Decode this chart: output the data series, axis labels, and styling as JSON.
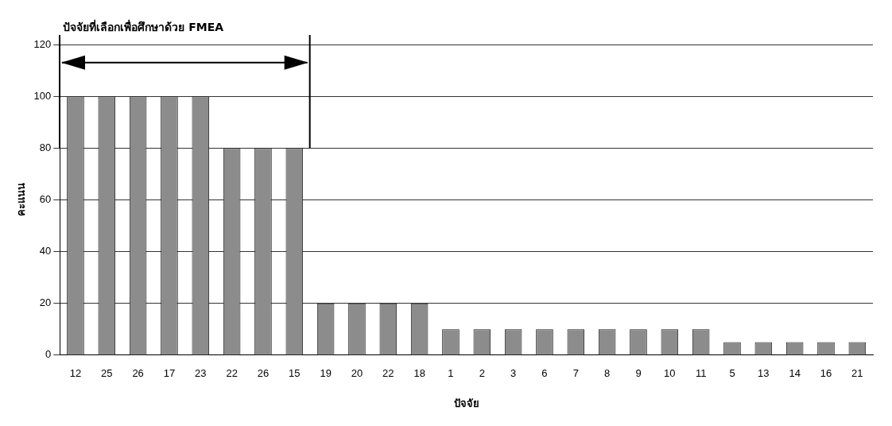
{
  "chart_data": {
    "type": "bar",
    "xlabel": "ปัจจัย",
    "ylabel": "คะแนน",
    "annotations": [
      "ปัจจัยที่เลือกเพื่อศึกษาด้วย FMEA"
    ],
    "categories": [
      "12",
      "25",
      "26",
      "17",
      "23",
      "22",
      "26",
      "15",
      "19",
      "20",
      "22",
      "18",
      "1",
      "2",
      "3",
      "6",
      "7",
      "8",
      "9",
      "10",
      "11",
      "5",
      "13",
      "14",
      "16",
      "21"
    ],
    "values": [
      100,
      100,
      100,
      100,
      100,
      80,
      80,
      80,
      20,
      20,
      20,
      20,
      10,
      10,
      10,
      10,
      10,
      10,
      10,
      10,
      10,
      5,
      5,
      5,
      5,
      5
    ],
    "color": "#8c8c8c",
    "ylim": [
      0,
      120
    ],
    "yticks": [
      0,
      20,
      40,
      60,
      80,
      100,
      120
    ],
    "grid": "y",
    "legend": false
  }
}
